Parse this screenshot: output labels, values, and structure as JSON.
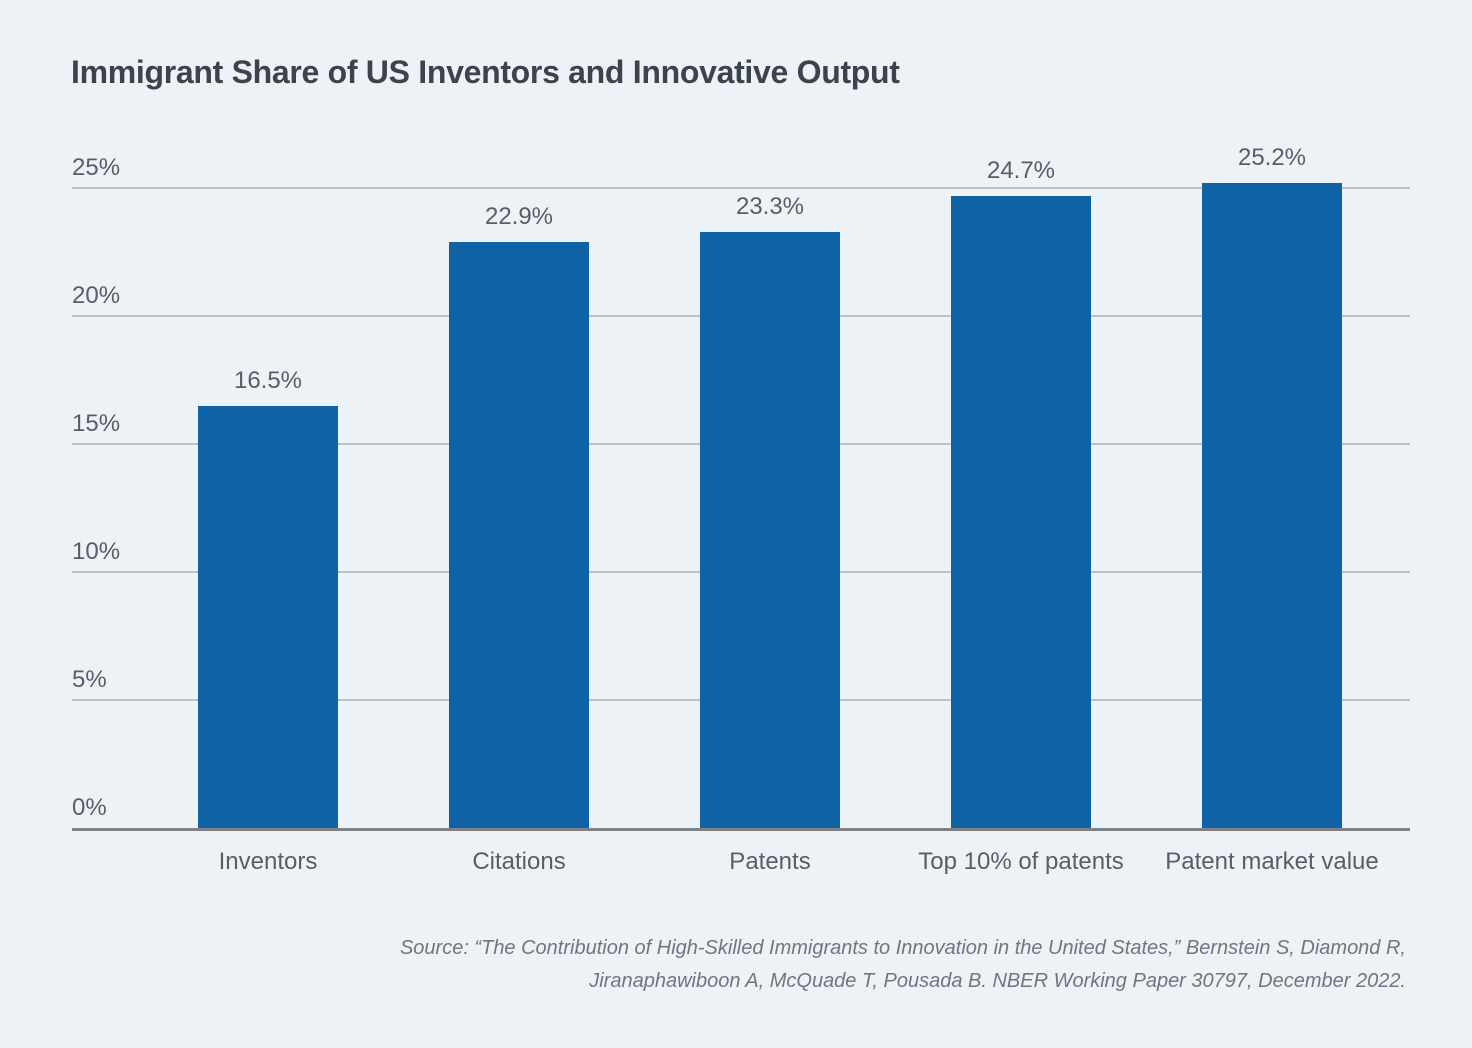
{
  "title": "Immigrant Share of US Inventors and Innovative Output",
  "chart_data": {
    "type": "bar",
    "title": "Immigrant Share of US Inventors and Innovative Output",
    "categories": [
      "Inventors",
      "Citations",
      "Patents",
      "Top 10% of patents",
      "Patent market value"
    ],
    "values": [
      16.5,
      22.9,
      23.3,
      24.7,
      25.2
    ],
    "value_labels": [
      "16.5%",
      "22.9%",
      "23.3%",
      "24.7%",
      "25.2%"
    ],
    "xlabel": "",
    "ylabel": "",
    "ylim": [
      0,
      25
    ],
    "yticks": [
      0,
      5,
      10,
      15,
      20,
      25
    ],
    "ytick_labels": [
      "0%",
      "5%",
      "10%",
      "15%",
      "20%",
      "25%"
    ],
    "grid": true,
    "legend": false
  },
  "colors": {
    "background": "#edf2f7",
    "bar": "#0f63a5",
    "gridline": "#bfc3c9",
    "axis_line": "#7d8288",
    "label_text": "#575e66",
    "title_text": "#3d434c",
    "source_text": "#70767e"
  },
  "source": {
    "line1": "Source: “The Contribution of High-Skilled Immigrants to Innovation in the United States,” Bernstein S, Diamond R,",
    "line2": "Jiranaphawiboon A, McQuade T, Pousada B. NBER Working Paper 30797, December 2022."
  }
}
